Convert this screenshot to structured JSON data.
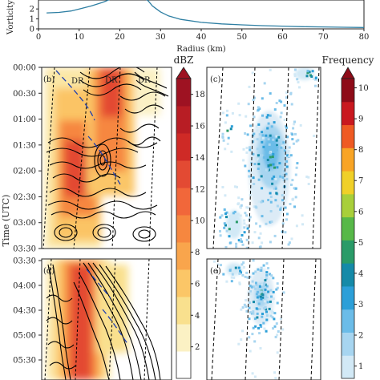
{
  "chart_data": [
    {
      "type": "line",
      "id": "profile",
      "ylabel": "Vorticity (",
      "xlabel": "Radius (km)",
      "x_ticks": [
        0,
        10,
        20,
        30,
        40,
        50,
        60,
        70,
        80
      ],
      "y_ticks": [
        0,
        1,
        2
      ],
      "xlim": [
        0,
        80
      ],
      "ylim": [
        0,
        2.9
      ],
      "line_color": "#2e7fa3",
      "series": [
        {
          "x": [
            2,
            5,
            8,
            10,
            13,
            16,
            19,
            22,
            25,
            27,
            28,
            29,
            30,
            32,
            35,
            40,
            45,
            50,
            55,
            60,
            65,
            70,
            75,
            80
          ],
          "y": [
            1.6,
            1.65,
            1.8,
            2.0,
            2.3,
            2.7,
            3.2,
            3.6,
            3.4,
            2.8,
            2.3,
            2.0,
            1.7,
            1.3,
            0.95,
            0.65,
            0.5,
            0.4,
            0.32,
            0.27,
            0.22,
            0.19,
            0.16,
            0.14
          ]
        }
      ]
    },
    {
      "type": "heatmap",
      "id": "dbz-panels",
      "ylabel": "Time (UTC)",
      "panels": [
        {
          "letter": "(b)",
          "time_ticks": [
            "00:00",
            "00:30",
            "01:00",
            "01:30",
            "02:00",
            "02:30",
            "03:00",
            "03:30"
          ]
        },
        {
          "letter": "(d)",
          "time_ticks": [
            "03:30",
            "04:00",
            "04:30",
            "05:00",
            "05:30"
          ]
        }
      ],
      "line_labels": [
        "DR",
        "DR",
        "DR"
      ],
      "colorbar": {
        "title": "dBZ",
        "ticks": [
          2,
          4,
          6,
          8,
          10,
          12,
          14,
          16,
          18
        ],
        "range": [
          0,
          19
        ],
        "colors": [
          "#ffffff",
          "#fbf1c4",
          "#f9e08e",
          "#fbc667",
          "#f9a54c",
          "#f6873f",
          "#f1673a",
          "#e34a33",
          "#cf2a26",
          "#b81d24",
          "#9e1222"
        ]
      }
    },
    {
      "type": "heatmap",
      "id": "frequency-panels",
      "panels": [
        {
          "letter": "(c)"
        },
        {
          "letter": "(e)"
        }
      ],
      "colorbar": {
        "title": "Frequency",
        "ticks": [
          1,
          2,
          3,
          4,
          5,
          6,
          7,
          8,
          9,
          10
        ],
        "range": [
          0.6,
          10.3
        ],
        "colors": [
          "#d2e9f6",
          "#a7d5f0",
          "#6bbce8",
          "#2c9fd8",
          "#158aa8",
          "#2a9b68",
          "#57b848",
          "#a8cf3a",
          "#f0d028",
          "#f8a425",
          "#ef5a23",
          "#c9181f",
          "#8e0b18"
        ]
      }
    }
  ]
}
